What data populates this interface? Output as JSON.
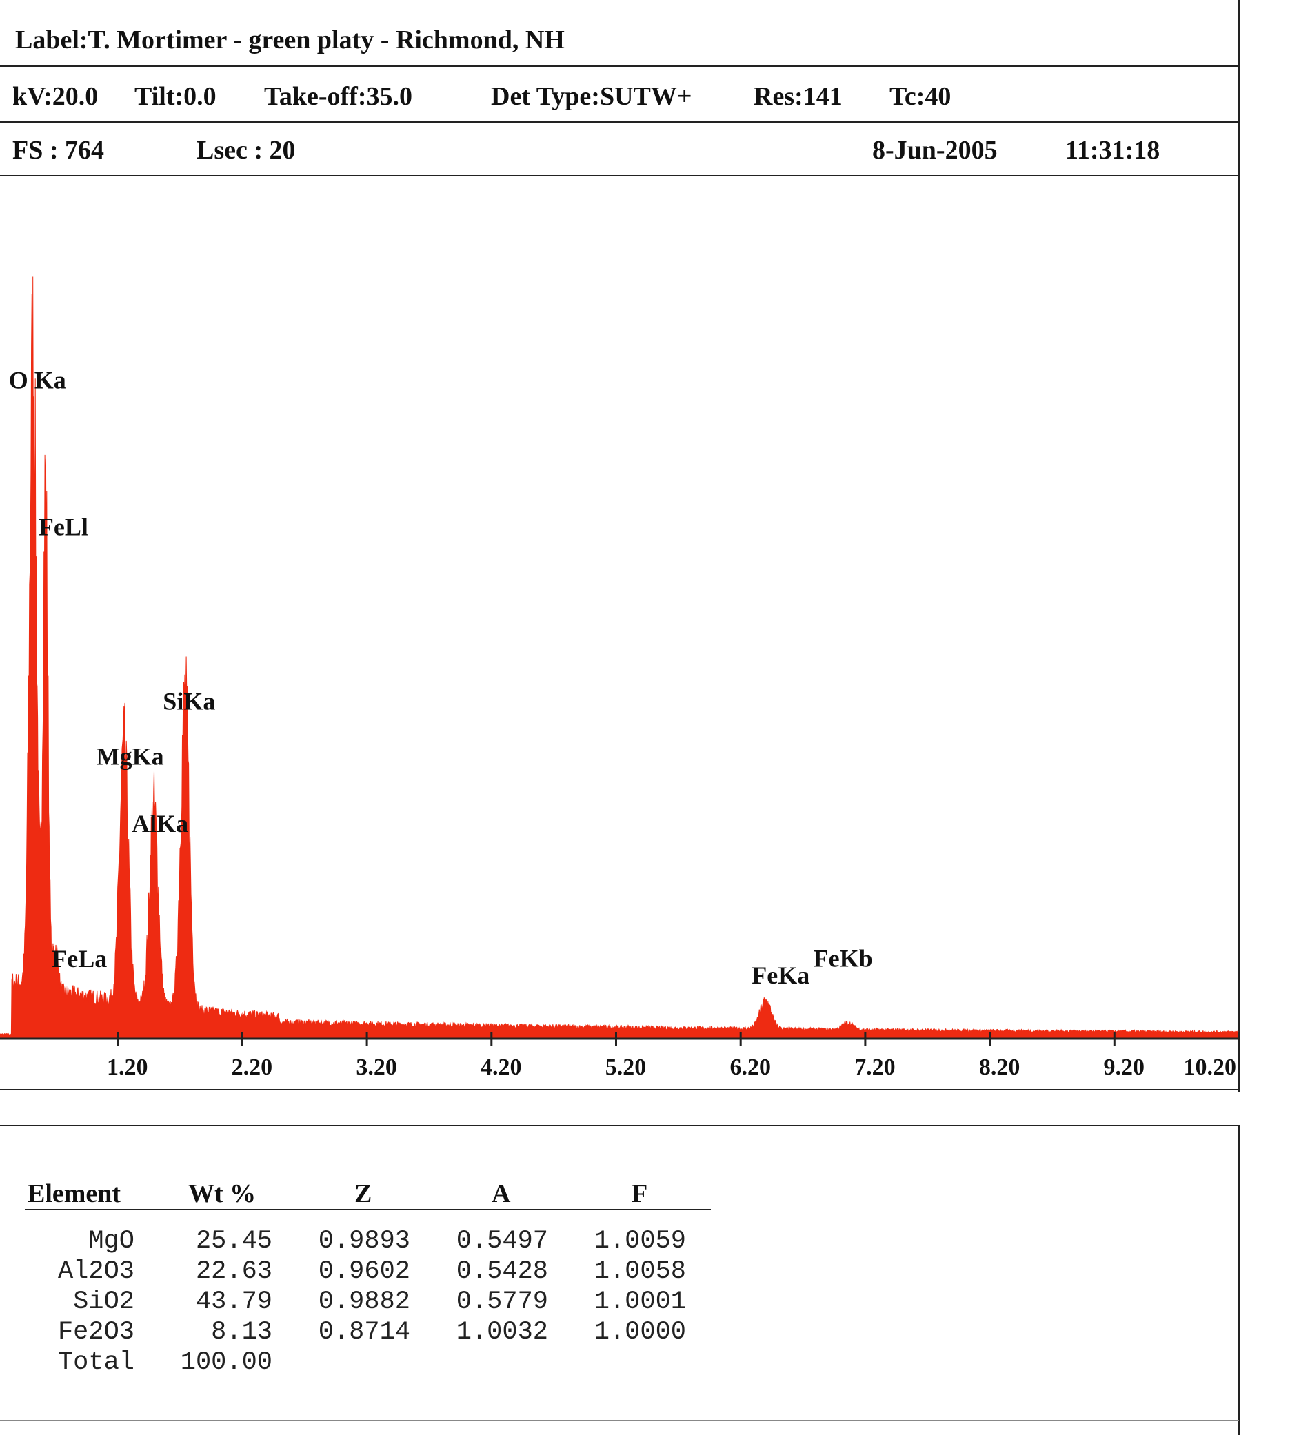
{
  "header": {
    "label": "Label:T. Mortimer - green platy - Richmond, NH",
    "kv": "kV:20.0",
    "tilt": "Tilt:0.0",
    "takeoff": "Take-off:35.0",
    "det_type": "Det Type:SUTW+",
    "res": "Res:141",
    "tc": "Tc:40",
    "fs": "FS : 764",
    "lsec": "Lsec : 20",
    "date": "8-Jun-2005",
    "time": "11:31:18"
  },
  "chart_data": {
    "type": "area",
    "color": "#ee2b12",
    "x_ticks": [
      "1.20",
      "2.20",
      "3.20",
      "4.20",
      "5.20",
      "6.20",
      "7.20",
      "8.20",
      "9.20",
      "10.20"
    ],
    "xlim": [
      0.2,
      10.2
    ],
    "ylim": [
      0,
      764
    ],
    "peaks": [
      {
        "label": "O Ka",
        "energy": 0.52,
        "counts": 570
      },
      {
        "label": "FeLl",
        "energy": 0.62,
        "counts": 450
      },
      {
        "label": "FeLa",
        "energy": 0.7,
        "counts": 40
      },
      {
        "label": "MgKa",
        "energy": 1.25,
        "counts": 230
      },
      {
        "label": "AlKa",
        "energy": 1.49,
        "counts": 178
      },
      {
        "label": "SiKa",
        "energy": 1.74,
        "counts": 280
      },
      {
        "label": "FeKa",
        "energy": 6.4,
        "counts": 25
      },
      {
        "label": "FeKb",
        "energy": 7.06,
        "counts": 6
      }
    ]
  },
  "table": {
    "headers": [
      "Element",
      "Wt %",
      "Z",
      "A",
      "F"
    ],
    "rows": [
      [
        "MgO",
        "25.45",
        "0.9893",
        "0.5497",
        "1.0059"
      ],
      [
        "Al2O3",
        "22.63",
        "0.9602",
        "0.5428",
        "1.0058"
      ],
      [
        "SiO2",
        "43.79",
        "0.9882",
        "0.5779",
        "1.0001"
      ],
      [
        "Fe2O3",
        "8.13",
        "0.8714",
        "1.0032",
        "1.0000"
      ]
    ],
    "total_label": "Total",
    "total_value": "100.00"
  }
}
